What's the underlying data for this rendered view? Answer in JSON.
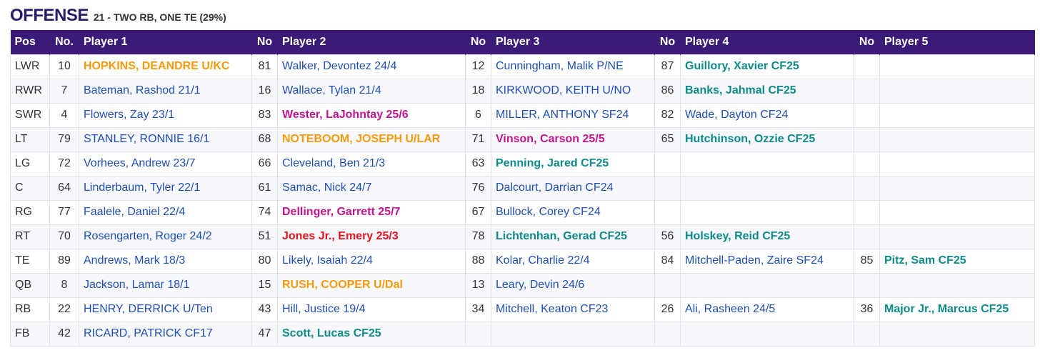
{
  "heading": {
    "title": "OFFENSE",
    "subtitle": "21 - TWO RB, ONE TE (29%)"
  },
  "colors": {
    "header_bg": "#3a1c78",
    "blue": "#1f4fb5",
    "orange": "#f59a0c",
    "teal": "#0e8a8a",
    "magenta": "#c4138e",
    "red": "#e8111b"
  },
  "columns": [
    "Pos",
    "No.",
    "Player 1",
    "No",
    "Player 2",
    "No",
    "Player 3",
    "No",
    "Player 4",
    "No",
    "Player 5"
  ],
  "rows": [
    {
      "pos": "LWR",
      "players": [
        {
          "no": "10",
          "name": "HOPKINS, DEANDRE U/KC",
          "style": "orange"
        },
        {
          "no": "81",
          "name": "Walker, Devontez 24/4",
          "style": "blue"
        },
        {
          "no": "12",
          "name": "Cunningham, Malik P/NE",
          "style": "blue"
        },
        {
          "no": "87",
          "name": "Guillory, Xavier CF25",
          "style": "teal"
        },
        {
          "no": "",
          "name": "",
          "style": "blue"
        }
      ]
    },
    {
      "pos": "RWR",
      "players": [
        {
          "no": "7",
          "name": "Bateman, Rashod 21/1",
          "style": "blue"
        },
        {
          "no": "16",
          "name": "Wallace, Tylan 21/4",
          "style": "blue"
        },
        {
          "no": "18",
          "name": "KIRKWOOD, KEITH U/NO",
          "style": "blue"
        },
        {
          "no": "86",
          "name": "Banks, Jahmal CF25",
          "style": "teal"
        },
        {
          "no": "",
          "name": "",
          "style": "blue"
        }
      ]
    },
    {
      "pos": "SWR",
      "players": [
        {
          "no": "4",
          "name": "Flowers, Zay 23/1",
          "style": "blue"
        },
        {
          "no": "83",
          "name": "Wester, LaJohntay 25/6",
          "style": "magenta"
        },
        {
          "no": "6",
          "name": "MILLER, ANTHONY SF24",
          "style": "blue"
        },
        {
          "no": "82",
          "name": "Wade, Dayton CF24",
          "style": "blue"
        },
        {
          "no": "",
          "name": "",
          "style": "blue"
        }
      ]
    },
    {
      "pos": "LT",
      "players": [
        {
          "no": "79",
          "name": "STANLEY, RONNIE 16/1",
          "style": "blue"
        },
        {
          "no": "68",
          "name": "NOTEBOOM, JOSEPH U/LAR",
          "style": "orange"
        },
        {
          "no": "71",
          "name": "Vinson, Carson 25/5",
          "style": "magenta"
        },
        {
          "no": "65",
          "name": "Hutchinson, Ozzie CF25",
          "style": "teal"
        },
        {
          "no": "",
          "name": "",
          "style": "blue"
        }
      ]
    },
    {
      "pos": "LG",
      "players": [
        {
          "no": "72",
          "name": "Vorhees, Andrew 23/7",
          "style": "blue"
        },
        {
          "no": "66",
          "name": "Cleveland, Ben 21/3",
          "style": "blue"
        },
        {
          "no": "63",
          "name": "Penning, Jared CF25",
          "style": "teal"
        },
        {
          "no": "",
          "name": "",
          "style": "blue"
        },
        {
          "no": "",
          "name": "",
          "style": "blue"
        }
      ]
    },
    {
      "pos": "C",
      "players": [
        {
          "no": "64",
          "name": "Linderbaum, Tyler 22/1",
          "style": "blue"
        },
        {
          "no": "61",
          "name": "Samac, Nick 24/7",
          "style": "blue"
        },
        {
          "no": "76",
          "name": "Dalcourt, Darrian CF24",
          "style": "blue"
        },
        {
          "no": "",
          "name": "",
          "style": "blue"
        },
        {
          "no": "",
          "name": "",
          "style": "blue"
        }
      ]
    },
    {
      "pos": "RG",
      "players": [
        {
          "no": "77",
          "name": "Faalele, Daniel 22/4",
          "style": "blue"
        },
        {
          "no": "74",
          "name": "Dellinger, Garrett 25/7",
          "style": "magenta"
        },
        {
          "no": "67",
          "name": "Bullock, Corey CF24",
          "style": "blue"
        },
        {
          "no": "",
          "name": "",
          "style": "blue"
        },
        {
          "no": "",
          "name": "",
          "style": "blue"
        }
      ]
    },
    {
      "pos": "RT",
      "players": [
        {
          "no": "70",
          "name": "Rosengarten, Roger 24/2",
          "style": "blue"
        },
        {
          "no": "51",
          "name": "Jones Jr., Emery 25/3",
          "style": "red"
        },
        {
          "no": "78",
          "name": "Lichtenhan, Gerad CF25",
          "style": "teal"
        },
        {
          "no": "56",
          "name": "Holskey, Reid CF25",
          "style": "teal"
        },
        {
          "no": "",
          "name": "",
          "style": "blue"
        }
      ]
    },
    {
      "pos": "TE",
      "players": [
        {
          "no": "89",
          "name": "Andrews, Mark 18/3",
          "style": "blue"
        },
        {
          "no": "80",
          "name": "Likely, Isaiah 22/4",
          "style": "blue"
        },
        {
          "no": "88",
          "name": "Kolar, Charlie 22/4",
          "style": "blue"
        },
        {
          "no": "84",
          "name": "Mitchell-Paden, Zaire SF24",
          "style": "blue"
        },
        {
          "no": "85",
          "name": "Pitz, Sam CF25",
          "style": "teal"
        }
      ]
    },
    {
      "pos": "QB",
      "players": [
        {
          "no": "8",
          "name": "Jackson, Lamar 18/1",
          "style": "blue"
        },
        {
          "no": "15",
          "name": "RUSH, COOPER U/Dal",
          "style": "orange"
        },
        {
          "no": "13",
          "name": "Leary, Devin 24/6",
          "style": "blue"
        },
        {
          "no": "",
          "name": "",
          "style": "blue"
        },
        {
          "no": "",
          "name": "",
          "style": "blue"
        }
      ]
    },
    {
      "pos": "RB",
      "players": [
        {
          "no": "22",
          "name": "HENRY, DERRICK U/Ten",
          "style": "blue"
        },
        {
          "no": "43",
          "name": "Hill, Justice 19/4",
          "style": "blue"
        },
        {
          "no": "34",
          "name": "Mitchell, Keaton CF23",
          "style": "blue"
        },
        {
          "no": "26",
          "name": "Ali, Rasheen 24/5",
          "style": "blue"
        },
        {
          "no": "36",
          "name": "Major Jr., Marcus CF25",
          "style": "teal"
        }
      ]
    },
    {
      "pos": "FB",
      "players": [
        {
          "no": "42",
          "name": "RICARD, PATRICK CF17",
          "style": "blue"
        },
        {
          "no": "47",
          "name": "Scott, Lucas CF25",
          "style": "teal"
        },
        {
          "no": "",
          "name": "",
          "style": "blue"
        },
        {
          "no": "",
          "name": "",
          "style": "blue"
        },
        {
          "no": "",
          "name": "",
          "style": "blue"
        }
      ]
    }
  ]
}
